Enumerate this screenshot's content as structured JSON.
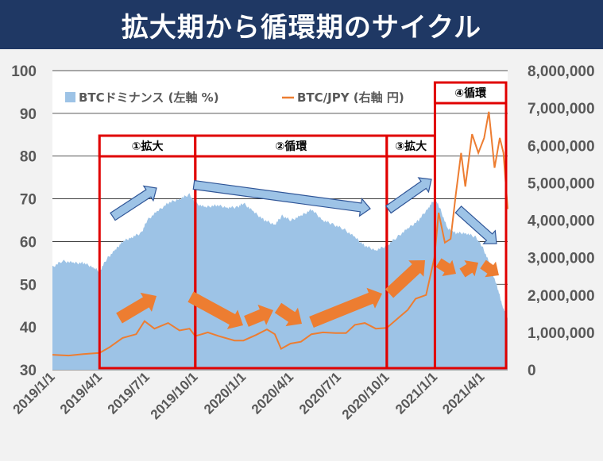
{
  "header": {
    "title": "拡大期から循環期のサイクル"
  },
  "chart_data": {
    "type": "area+line",
    "title": "拡大期から循環期のサイクル",
    "legend": {
      "placement": "top-left",
      "entries": [
        {
          "name": "BTCドミナンス (左軸 %)",
          "color": "#9dc3e6"
        },
        {
          "name": "BTC/JPY (右軸 円)",
          "color": "#ed7d31"
        }
      ]
    },
    "y_left": {
      "ylim": [
        30,
        100
      ],
      "ticks": [
        "100",
        "90",
        "80",
        "70",
        "60",
        "50",
        "40",
        "30"
      ]
    },
    "y_right": {
      "ylim": [
        0,
        8000000
      ],
      "ticks": [
        "8,000,000",
        "7,000,000",
        "6,000,000",
        "5,000,000",
        "4,000,000",
        "3,000,000",
        "2,000,000",
        "1,000,000",
        "0"
      ]
    },
    "x_ticks": [
      "2019/1/1",
      "2019/4/1",
      "2019/7/1",
      "2019/10/1",
      "2020/1/1",
      "2020/4/1",
      "2020/7/1",
      "2020/10/1",
      "2021/1/1",
      "2021/4/1"
    ],
    "x_range": [
      "2019/1/1",
      "2021/5/20"
    ],
    "series": [
      {
        "name": "BTCドミナンス (左軸 %)",
        "axis": "left",
        "kind": "area",
        "color": "#9dc3e6",
        "points": [
          [
            "2019/1/1",
            54
          ],
          [
            "2019/1/20",
            55.5
          ],
          [
            "2019/2/10",
            55
          ],
          [
            "2019/3/1",
            55
          ],
          [
            "2019/3/20",
            54
          ],
          [
            "2019/4/1",
            53
          ],
          [
            "2019/4/15",
            56
          ],
          [
            "2019/5/1",
            58
          ],
          [
            "2019/5/15",
            60
          ],
          [
            "2019/6/1",
            61
          ],
          [
            "2019/6/20",
            62
          ],
          [
            "2019/7/1",
            65
          ],
          [
            "2019/7/20",
            67
          ],
          [
            "2019/8/10",
            69
          ],
          [
            "2019/9/1",
            70
          ],
          [
            "2019/9/20",
            71
          ],
          [
            "2019/10/1",
            69
          ],
          [
            "2019/10/20",
            68
          ],
          [
            "2019/11/10",
            68.5
          ],
          [
            "2019/12/1",
            68
          ],
          [
            "2019/12/20",
            68
          ],
          [
            "2020/1/1",
            69
          ],
          [
            "2020/1/20",
            67
          ],
          [
            "2020/2/10",
            65
          ],
          [
            "2020/3/1",
            64
          ],
          [
            "2020/3/15",
            66
          ],
          [
            "2020/4/1",
            65
          ],
          [
            "2020/4/20",
            66
          ],
          [
            "2020/5/10",
            67.5
          ],
          [
            "2020/6/1",
            65
          ],
          [
            "2020/6/20",
            64
          ],
          [
            "2020/7/10",
            63
          ],
          [
            "2020/8/1",
            61
          ],
          [
            "2020/8/20",
            59
          ],
          [
            "2020/9/10",
            58
          ],
          [
            "2020/10/1",
            59
          ],
          [
            "2020/10/20",
            61
          ],
          [
            "2020/11/10",
            63
          ],
          [
            "2020/12/1",
            65
          ],
          [
            "2020/12/20",
            68
          ],
          [
            "2021/1/1",
            70
          ],
          [
            "2021/1/10",
            68
          ],
          [
            "2021/1/25",
            63
          ],
          [
            "2021/2/10",
            62
          ],
          [
            "2021/3/1",
            62
          ],
          [
            "2021/3/20",
            61
          ],
          [
            "2021/4/1",
            59
          ],
          [
            "2021/4/15",
            55
          ],
          [
            "2021/5/1",
            49
          ],
          [
            "2021/5/10",
            45
          ],
          [
            "2021/5/20",
            42
          ]
        ]
      },
      {
        "name": "BTC/JPY (右軸 円)",
        "axis": "right",
        "kind": "line",
        "color": "#ed7d31",
        "points": [
          [
            "2019/1/1",
            400000
          ],
          [
            "2019/2/1",
            380000
          ],
          [
            "2019/3/1",
            420000
          ],
          [
            "2019/4/1",
            450000
          ],
          [
            "2019/4/20",
            600000
          ],
          [
            "2019/5/15",
            850000
          ],
          [
            "2019/6/10",
            950000
          ],
          [
            "2019/6/26",
            1300000
          ],
          [
            "2019/7/15",
            1100000
          ],
          [
            "2019/8/10",
            1250000
          ],
          [
            "2019/9/1",
            1050000
          ],
          [
            "2019/9/20",
            1100000
          ],
          [
            "2019/10/1",
            900000
          ],
          [
            "2019/10/25",
            1000000
          ],
          [
            "2019/11/15",
            900000
          ],
          [
            "2019/12/15",
            780000
          ],
          [
            "2020/1/1",
            780000
          ],
          [
            "2020/1/25",
            930000
          ],
          [
            "2020/2/15",
            1080000
          ],
          [
            "2020/3/1",
            950000
          ],
          [
            "2020/3/13",
            560000
          ],
          [
            "2020/3/31",
            700000
          ],
          [
            "2020/4/20",
            750000
          ],
          [
            "2020/5/10",
            950000
          ],
          [
            "2020/6/1",
            1000000
          ],
          [
            "2020/6/25",
            980000
          ],
          [
            "2020/7/15",
            980000
          ],
          [
            "2020/8/1",
            1200000
          ],
          [
            "2020/8/20",
            1250000
          ],
          [
            "2020/9/10",
            1100000
          ],
          [
            "2020/10/1",
            1120000
          ],
          [
            "2020/10/20",
            1350000
          ],
          [
            "2020/11/10",
            1600000
          ],
          [
            "2020/11/25",
            1900000
          ],
          [
            "2020/12/15",
            2000000
          ],
          [
            "2020/12/31",
            3000000
          ],
          [
            "2021/1/8",
            4200000
          ],
          [
            "2021/1/20",
            3400000
          ],
          [
            "2021/1/31",
            3500000
          ],
          [
            "2021/2/10",
            4700000
          ],
          [
            "2021/2/20",
            5800000
          ],
          [
            "2021/2/28",
            4900000
          ],
          [
            "2021/3/13",
            6300000
          ],
          [
            "2021/3/25",
            5800000
          ],
          [
            "2021/4/5",
            6200000
          ],
          [
            "2021/4/14",
            6900000
          ],
          [
            "2021/4/25",
            5400000
          ],
          [
            "2021/5/5",
            6200000
          ],
          [
            "2021/5/12",
            5800000
          ],
          [
            "2021/5/20",
            4300000
          ]
        ]
      }
    ],
    "phases": [
      {
        "label": "①拡大",
        "start": "2019/4/1",
        "end": "2019/10/1"
      },
      {
        "label": "②循環",
        "start": "2019/10/1",
        "end": "2020/10/1"
      },
      {
        "label": "③拡大",
        "start": "2020/10/1",
        "end": "2021/1/1"
      },
      {
        "label": "④循環",
        "start": "2021/1/1",
        "end": "2021/5/20"
      }
    ]
  }
}
